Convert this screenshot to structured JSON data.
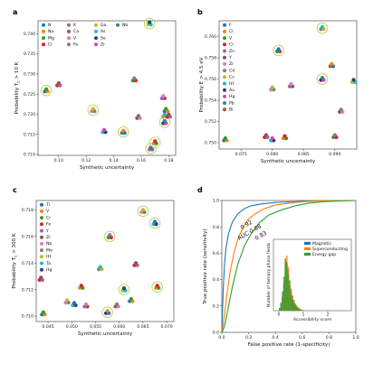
{
  "chart_data": [
    {
      "panel": "a",
      "type": "scatter",
      "xlabel": "Synthetic uncertainty",
      "ylabel": "Probability T_c > 10 K",
      "xlim": [
        0.085,
        0.185
      ],
      "ylim": [
        0.7098,
        0.7432
      ],
      "xticks": [
        "0.10",
        "0.12",
        "0.14",
        "0.16",
        "0.18"
      ],
      "yticks": [
        "0.710",
        "0.715",
        "0.720",
        "0.725",
        "0.730",
        "0.735",
        "0.740"
      ],
      "legend": [
        "N",
        "Na",
        "Mg",
        "Cl",
        "K",
        "Ca",
        "V",
        "Fe",
        "Ga",
        "As",
        "Se",
        "Zr",
        "Nb"
      ],
      "legend_colors": [
        "#1f77b4",
        "#ff7f0e",
        "#2ca02c",
        "#d62728",
        "#9467bd",
        "#8c564b",
        "#e377c2",
        "#7f7f7f",
        "#bcbd22",
        "#17becf",
        "#393b79",
        "#d048a8",
        "#2f8a8a"
      ],
      "points": [
        {
          "x": 0.091,
          "y": 0.7259,
          "circled": true
        },
        {
          "x": 0.1,
          "y": 0.7274,
          "circled": false
        },
        {
          "x": 0.125,
          "y": 0.721,
          "circled": true
        },
        {
          "x": 0.133,
          "y": 0.7158,
          "circled": false
        },
        {
          "x": 0.147,
          "y": 0.7156,
          "circled": true
        },
        {
          "x": 0.155,
          "y": 0.7286,
          "circled": false
        },
        {
          "x": 0.158,
          "y": 0.7193,
          "circled": false
        },
        {
          "x": 0.166,
          "y": 0.7425,
          "circled": true
        },
        {
          "x": 0.167,
          "y": 0.7115,
          "circled": true
        },
        {
          "x": 0.17,
          "y": 0.713,
          "circled": true
        },
        {
          "x": 0.176,
          "y": 0.7242,
          "circled": false
        },
        {
          "x": 0.177,
          "y": 0.7196,
          "circled": false
        },
        {
          "x": 0.177,
          "y": 0.718,
          "circled": true
        },
        {
          "x": 0.178,
          "y": 0.721,
          "circled": false
        },
        {
          "x": 0.18,
          "y": 0.7196,
          "circled": false
        }
      ]
    },
    {
      "panel": "b",
      "type": "scatter",
      "xlabel": "Synthetic uncertainty",
      "ylabel": "Probability E > 4.5 eV",
      "xlim": [
        0.0715,
        0.0935
      ],
      "ylim": [
        0.7494,
        0.7615
      ],
      "xticks": [
        "0.075",
        "0.080",
        "0.085",
        "0.090"
      ],
      "yticks": [
        "0.750",
        "0.752",
        "0.754",
        "0.756",
        "0.758",
        "0.760"
      ],
      "legend": [
        "F",
        "Cl",
        "V",
        "Cr",
        "Zn",
        "Y",
        "Zr",
        "Cd",
        "Cs",
        "Hf",
        "Au",
        "Hg",
        "Pb",
        "Bi"
      ],
      "legend_colors": [
        "#1f77b4",
        "#ff7f0e",
        "#2ca02c",
        "#d62728",
        "#9467bd",
        "#8c564b",
        "#e377c2",
        "#7f7f7f",
        "#bcbd22",
        "#17becf",
        "#393b79",
        "#d048a8",
        "#2f8a8a",
        "#a05d2c"
      ],
      "points": [
        {
          "x": 0.0725,
          "y": 0.7503,
          "circled": false
        },
        {
          "x": 0.079,
          "y": 0.7506,
          "circled": false
        },
        {
          "x": 0.08,
          "y": 0.7551,
          "circled": false
        },
        {
          "x": 0.08,
          "y": 0.7503,
          "circled": false
        },
        {
          "x": 0.081,
          "y": 0.7587,
          "circled": true
        },
        {
          "x": 0.082,
          "y": 0.7505,
          "circled": false
        },
        {
          "x": 0.083,
          "y": 0.7554,
          "circled": false
        },
        {
          "x": 0.088,
          "y": 0.7608,
          "circled": true
        },
        {
          "x": 0.088,
          "y": 0.756,
          "circled": true
        },
        {
          "x": 0.0895,
          "y": 0.7573,
          "circled": false
        },
        {
          "x": 0.09,
          "y": 0.7506,
          "circled": false
        },
        {
          "x": 0.091,
          "y": 0.753,
          "circled": false
        },
        {
          "x": 0.093,
          "y": 0.7558,
          "circled": false
        }
      ]
    },
    {
      "panel": "c",
      "type": "scatter",
      "xlabel": "Synthetic uncertainty",
      "ylabel": "Probability T_c > 300 K",
      "xlim": [
        0.0425,
        0.0715
      ],
      "ylim": [
        0.7096,
        0.7187
      ],
      "xticks": [
        "0.045",
        "0.050",
        "0.055",
        "0.060",
        "0.065",
        "0.070"
      ],
      "yticks": [
        "0.710",
        "0.712",
        "0.714",
        "0.716",
        "0.718"
      ],
      "legend": [
        "Ti",
        "V",
        "Cr",
        "Fe",
        "Y",
        "Zr",
        "Nb",
        "Mo",
        "Hf",
        "Ta",
        "Hg"
      ],
      "legend_colors": [
        "#1f77b4",
        "#ff7f0e",
        "#2ca02c",
        "#d62728",
        "#9467bd",
        "#8c564b",
        "#e377c2",
        "#7f7f7f",
        "#bcbd22",
        "#17becf",
        "#393b79"
      ],
      "points": [
        {
          "x": 0.044,
          "y": 0.7102,
          "circled": false
        },
        {
          "x": 0.0435,
          "y": 0.7128,
          "circled": false
        },
        {
          "x": 0.049,
          "y": 0.7111,
          "circled": false
        },
        {
          "x": 0.0505,
          "y": 0.7109,
          "circled": false
        },
        {
          "x": 0.052,
          "y": 0.7122,
          "circled": false
        },
        {
          "x": 0.053,
          "y": 0.7108,
          "circled": false
        },
        {
          "x": 0.056,
          "y": 0.7136,
          "circled": false
        },
        {
          "x": 0.0575,
          "y": 0.7103,
          "circled": true
        },
        {
          "x": 0.058,
          "y": 0.716,
          "circled": true
        },
        {
          "x": 0.0595,
          "y": 0.7108,
          "circled": false
        },
        {
          "x": 0.061,
          "y": 0.712,
          "circled": true
        },
        {
          "x": 0.0625,
          "y": 0.7112,
          "circled": false
        },
        {
          "x": 0.0635,
          "y": 0.7139,
          "circled": false
        },
        {
          "x": 0.065,
          "y": 0.7179,
          "circled": true
        },
        {
          "x": 0.0675,
          "y": 0.717,
          "circled": true
        },
        {
          "x": 0.068,
          "y": 0.7122,
          "circled": true
        }
      ]
    },
    {
      "panel": "d",
      "type": "line",
      "xlabel": "False positive rate (1-specificity)",
      "ylabel": "True positive rate (sensitivity)",
      "xlim": [
        0,
        1
      ],
      "ylim": [
        0,
        1
      ],
      "xticks": [
        "0.0",
        "0.2",
        "0.4",
        "0.6",
        "0.8",
        "1.0"
      ],
      "yticks": [
        "0.0",
        "0.2",
        "0.4",
        "0.6",
        "0.8",
        "1.0"
      ],
      "auc_label": "AUC",
      "auc_values": [
        "0.92",
        "0.88",
        "0.83"
      ],
      "series": [
        {
          "name": "Magnetic",
          "color": "#1f77b4",
          "x": [
            0,
            0.005,
            0.01,
            0.02,
            0.03,
            0.05,
            0.08,
            0.12,
            0.17,
            0.22,
            0.3,
            0.4,
            0.5,
            0.6,
            0.7,
            0.8,
            0.9,
            1.0
          ],
          "y": [
            0,
            0.15,
            0.32,
            0.52,
            0.63,
            0.75,
            0.84,
            0.9,
            0.94,
            0.96,
            0.975,
            0.985,
            0.99,
            0.993,
            0.996,
            0.998,
            0.999,
            1.0
          ]
        },
        {
          "name": "Superconducting",
          "color": "#ff7f0e",
          "x": [
            0,
            0.01,
            0.02,
            0.04,
            0.06,
            0.09,
            0.12,
            0.16,
            0.2,
            0.25,
            0.32,
            0.4,
            0.5,
            0.6,
            0.7,
            0.8,
            0.9,
            1.0
          ],
          "y": [
            0,
            0.06,
            0.14,
            0.3,
            0.45,
            0.6,
            0.71,
            0.8,
            0.86,
            0.9,
            0.94,
            0.965,
            0.98,
            0.99,
            0.995,
            0.998,
            0.999,
            1.0
          ]
        },
        {
          "name": "Energy gap",
          "color": "#2ca02c",
          "x": [
            0,
            0.01,
            0.02,
            0.03,
            0.05,
            0.08,
            0.12,
            0.17,
            0.22,
            0.28,
            0.35,
            0.45,
            0.55,
            0.65,
            0.75,
            0.85,
            0.95,
            1.0
          ],
          "y": [
            0,
            0.02,
            0.05,
            0.09,
            0.2,
            0.35,
            0.52,
            0.66,
            0.75,
            0.83,
            0.89,
            0.93,
            0.96,
            0.98,
            0.99,
            0.995,
            0.999,
            1.0
          ]
        }
      ],
      "inset": {
        "type": "histogram",
        "xlabel": "Accessibility score",
        "ylabel": "Number of ternary phase fields",
        "xticks": [
          "0",
          "1",
          "2"
        ],
        "legend": [
          "Magnetic",
          "Superconducting",
          "Energy gap"
        ]
      }
    }
  ]
}
